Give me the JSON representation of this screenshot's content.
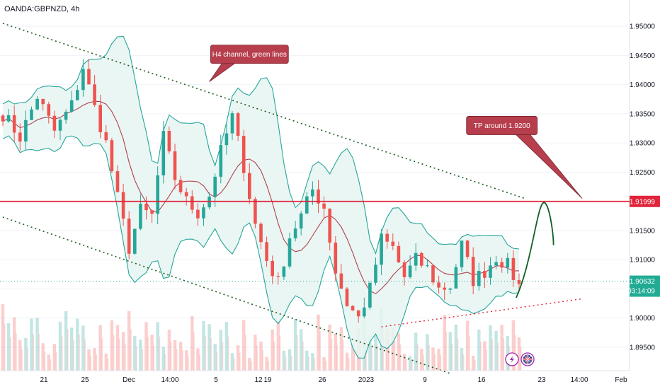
{
  "symbol_label": "OANDA:GBPNZD, 4h",
  "chart_data": {
    "type": "candlestick",
    "title": "OANDA:GBPNZD, 4h",
    "ylim": [
      1.891,
      1.9545
    ],
    "y_ticks": [
      "1.95000",
      "1.94500",
      "1.94000",
      "1.93500",
      "1.93000",
      "1.92500",
      "1.92000",
      "1.91500",
      "1.91000",
      "1.90500",
      "1.90000",
      "1.89500"
    ],
    "y_tick_values": [
      1.95,
      1.945,
      1.94,
      1.935,
      1.93,
      1.925,
      1.92,
      1.915,
      1.91,
      1.905,
      1.9,
      1.895
    ],
    "x_ticks": [
      "21",
      "25",
      "Dec",
      "14:00",
      "5",
      "12",
      "19",
      "26",
      "2023",
      "9",
      "16",
      "23",
      "14:00",
      "Feb"
    ],
    "price_path": [
      [
        0,
        1.935
      ],
      [
        3,
        1.931
      ],
      [
        6,
        1.938
      ],
      [
        9,
        1.932
      ],
      [
        12,
        1.9365
      ],
      [
        14,
        1.943
      ],
      [
        16,
        1.936
      ],
      [
        18,
        1.93
      ],
      [
        20,
        1.9205
      ],
      [
        22,
        1.912
      ],
      [
        24,
        1.9185
      ],
      [
        26,
        1.9175
      ],
      [
        28,
        1.931
      ],
      [
        30,
        1.924
      ],
      [
        32,
        1.92
      ],
      [
        34,
        1.918
      ],
      [
        36,
        1.921
      ],
      [
        38,
        1.9285
      ],
      [
        40,
        1.9345
      ],
      [
        42,
        1.926
      ],
      [
        44,
        1.916
      ],
      [
        46,
        1.91
      ],
      [
        48,
        1.906
      ],
      [
        50,
        1.914
      ],
      [
        52,
        1.9175
      ],
      [
        54,
        1.922
      ],
      [
        56,
        1.919
      ],
      [
        58,
        1.908
      ],
      [
        60,
        1.9025
      ],
      [
        62,
        1.9
      ],
      [
        64,
        1.905
      ],
      [
        66,
        1.9135
      ],
      [
        68,
        1.912
      ],
      [
        70,
        1.907
      ],
      [
        72,
        1.91
      ],
      [
        74,
        1.9085
      ],
      [
        76,
        1.905
      ],
      [
        78,
        1.9055
      ],
      [
        80,
        1.9125
      ],
      [
        82,
        1.9065
      ],
      [
        84,
        1.908
      ],
      [
        86,
        1.9105
      ],
      [
        88,
        1.909
      ],
      [
        90,
        1.9055
      ]
    ],
    "last_price": "1.90632",
    "countdown": "03:14:09",
    "horizontal_line": {
      "value": 1.91999,
      "label": "1.91999",
      "color": "#e0243a"
    },
    "channel_upper": [
      [
        0,
        1.9505
      ],
      [
        91,
        1.9205
      ]
    ],
    "channel_lower": [
      [
        0,
        1.9173
      ],
      [
        78,
        1.8905
      ]
    ],
    "support_line": [
      [
        66,
        1.8985
      ],
      [
        101,
        1.9033
      ]
    ],
    "forecast_curve": [
      [
        89.5,
        1.9035
      ],
      [
        92,
        1.909
      ],
      [
        93,
        1.9178
      ],
      [
        94,
        1.9195
      ],
      [
        96,
        1.9125
      ]
    ],
    "annotations": [
      {
        "text": "H4 channel, green lines",
        "x": 43,
        "y": 1.9452,
        "pointer": [
          36,
          1.9405
        ]
      },
      {
        "text": "TP around 1.9200",
        "x": 87,
        "y": 1.933,
        "pointer": [
          101,
          1.9205
        ]
      }
    ],
    "colors": {
      "up": "#26a69a",
      "down": "#ef5350",
      "band": "#26a69a",
      "band_fill": "#e6f5f1",
      "basis": "#b04050",
      "last_price": "#22ab94",
      "forecast": "#106020"
    }
  }
}
